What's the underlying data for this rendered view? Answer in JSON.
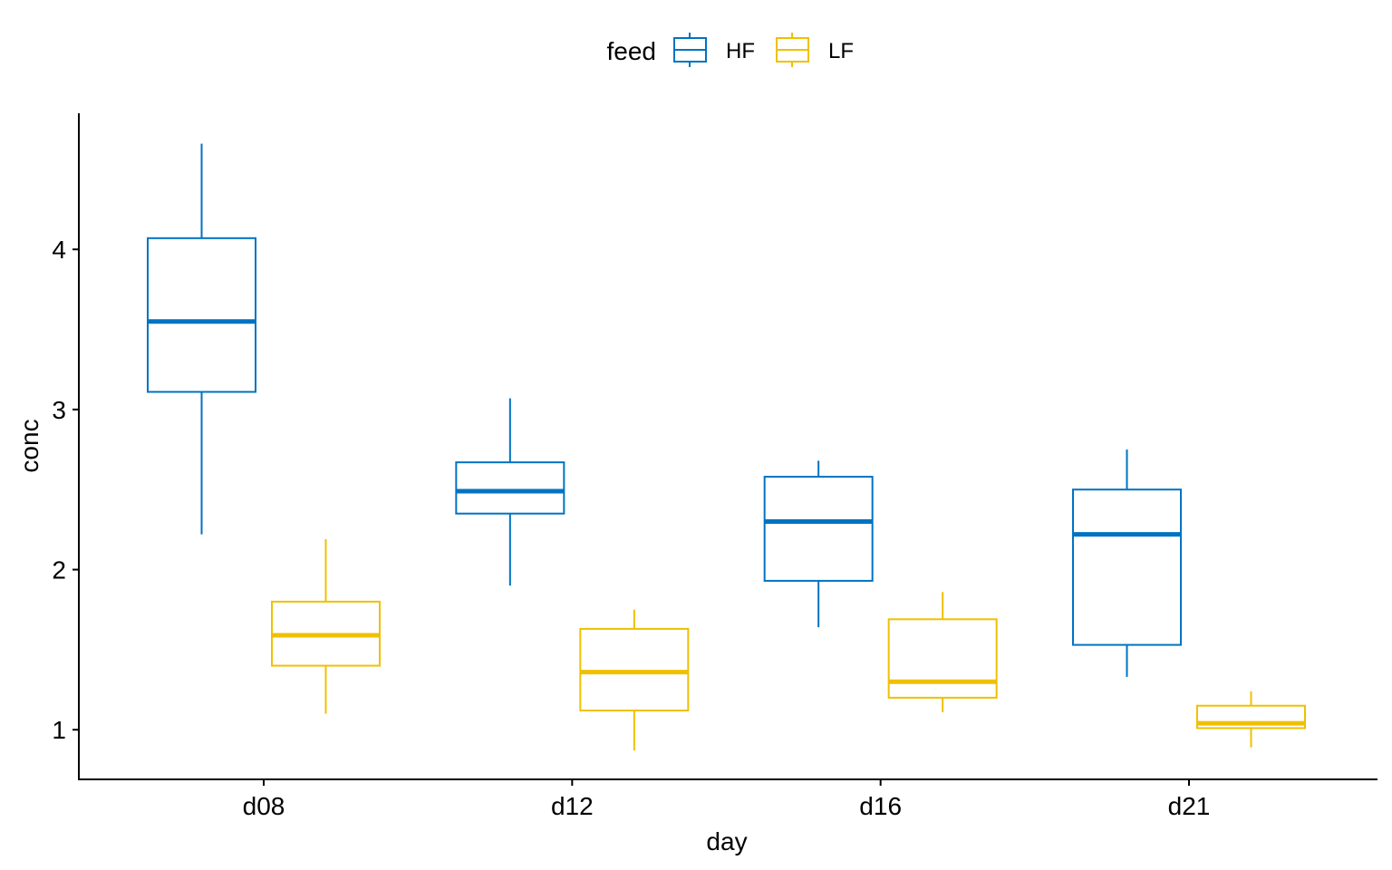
{
  "chart_data": {
    "type": "box",
    "xlabel": "day",
    "ylabel": "conc",
    "categories": [
      "d08",
      "d12",
      "d16",
      "d21"
    ],
    "ylim": [
      0.69,
      4.85
    ],
    "yticks": [
      1,
      2,
      3,
      4
    ],
    "grid": false,
    "legend": {
      "title": "feed",
      "position": "top"
    },
    "series": [
      {
        "name": "HF",
        "color": "#0073C2",
        "boxes": [
          {
            "whisker_low": 2.22,
            "q1": 3.11,
            "median": 3.55,
            "q3": 4.07,
            "whisker_high": 4.66
          },
          {
            "whisker_low": 1.9,
            "q1": 2.35,
            "median": 2.49,
            "q3": 2.67,
            "whisker_high": 3.07
          },
          {
            "whisker_low": 1.64,
            "q1": 1.93,
            "median": 2.3,
            "q3": 2.58,
            "whisker_high": 2.68
          },
          {
            "whisker_low": 1.33,
            "q1": 1.53,
            "median": 2.22,
            "q3": 2.5,
            "whisker_high": 2.75
          }
        ]
      },
      {
        "name": "LF",
        "color": "#EFC000",
        "boxes": [
          {
            "whisker_low": 1.1,
            "q1": 1.4,
            "median": 1.59,
            "q3": 1.8,
            "whisker_high": 2.19
          },
          {
            "whisker_low": 0.87,
            "q1": 1.12,
            "median": 1.36,
            "q3": 1.63,
            "whisker_high": 1.75
          },
          {
            "whisker_low": 1.11,
            "q1": 1.2,
            "median": 1.3,
            "q3": 1.69,
            "whisker_high": 1.86
          },
          {
            "whisker_low": 0.89,
            "q1": 1.01,
            "median": 1.04,
            "q3": 1.15,
            "whisker_high": 1.24
          }
        ]
      }
    ]
  }
}
